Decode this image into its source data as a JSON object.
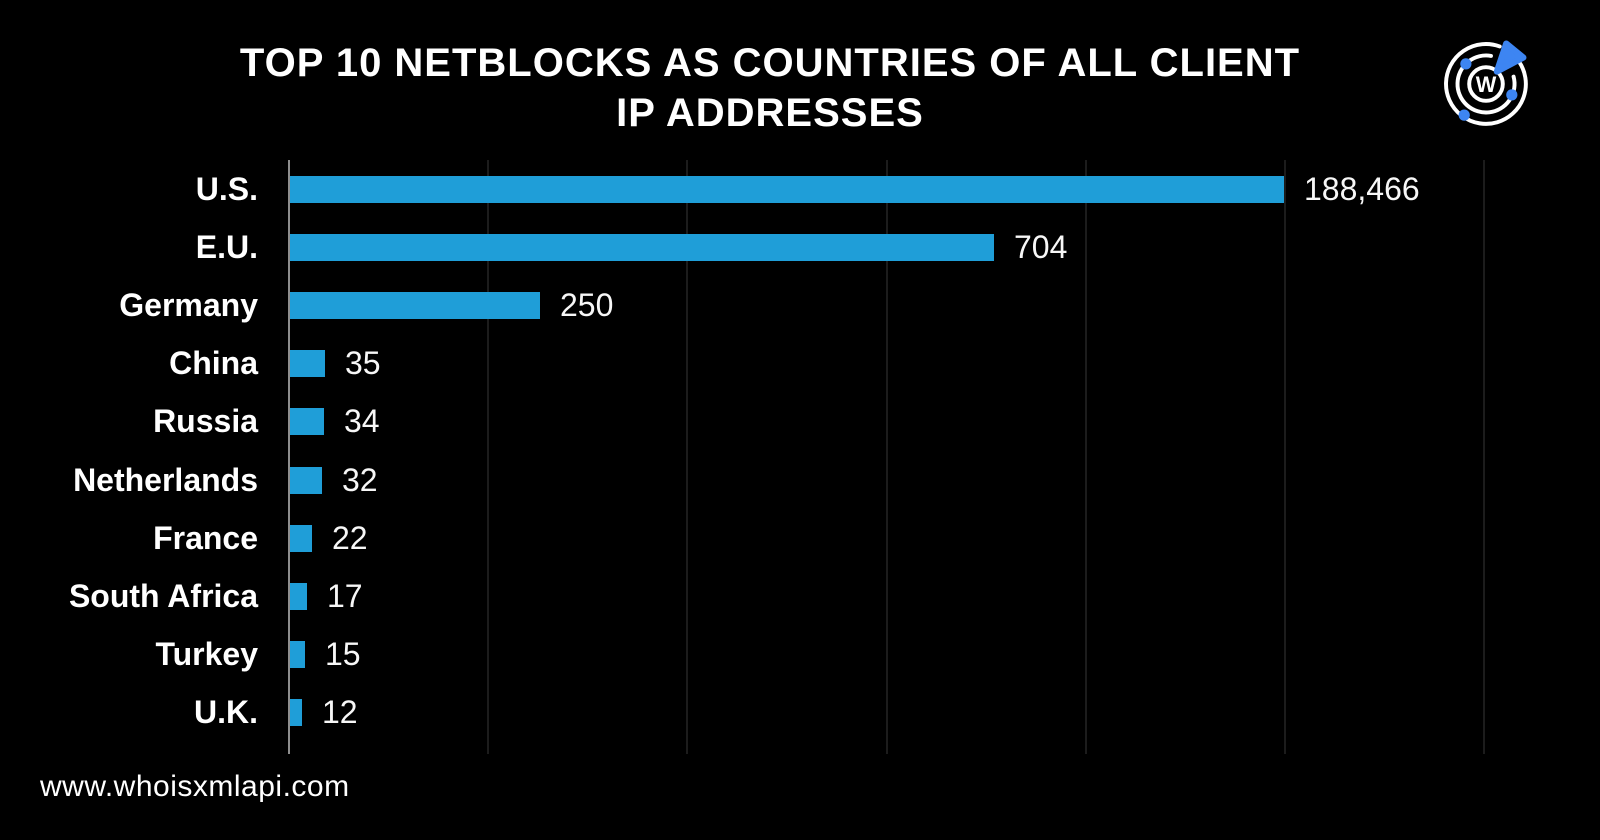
{
  "page": {
    "title_line1": "TOP 10 NETBLOCKS AS COUNTRIES OF ALL CLIENT",
    "title_line2": "IP ADDRESSES",
    "watermark": "www.whoisxmlapi.com",
    "logo_letter": "W"
  },
  "colors": {
    "background": "#000000",
    "bar": "#1f9ed8",
    "logo_accent": "#3d85f2",
    "logo_ring": "#ffffff",
    "text": "#ffffff",
    "axis": "#8e8e8e",
    "gridline": "#1c1c1c"
  },
  "chart_data": {
    "type": "bar",
    "orientation": "horizontal",
    "title": "TOP 10 NETBLOCKS AS COUNTRIES OF ALL CLIENT IP ADDRESSES",
    "categories": [
      "U.S.",
      "E.U.",
      "Germany",
      "China",
      "Russia",
      "Netherlands",
      "France",
      "South Africa",
      "Turkey",
      "U.K."
    ],
    "values": [
      188466,
      704,
      250,
      35,
      34,
      32,
      22,
      17,
      15,
      12
    ],
    "value_labels": [
      "188,466",
      "704",
      "250",
      "35",
      "34",
      "32",
      "22",
      "17",
      "15",
      "12"
    ],
    "xlabel": "",
    "ylabel": "",
    "legend": "none",
    "grid": "faint vertical gridlines, no tick labels",
    "axis_note": "bars drawn ~1px per unit; U.S. bar clipped at plot right edge"
  }
}
